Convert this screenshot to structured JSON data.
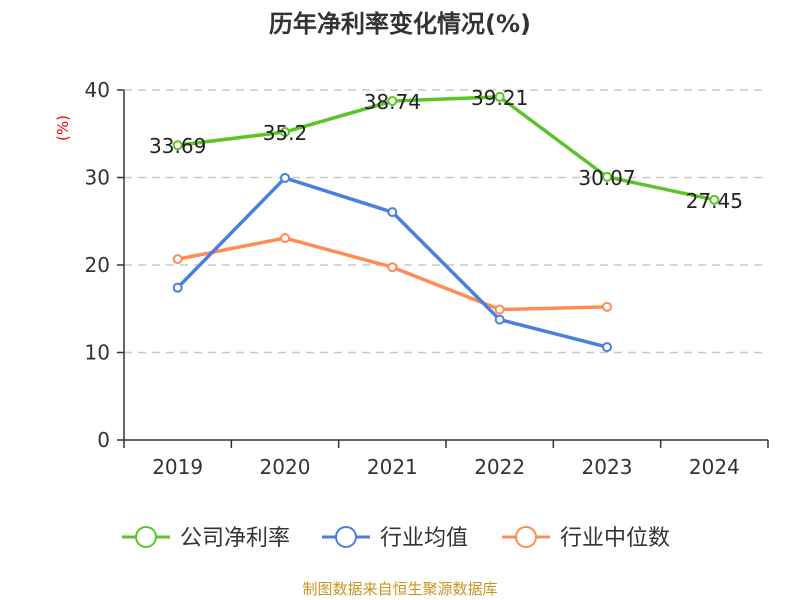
{
  "chart_data": {
    "type": "line",
    "title": "历年净利率变化情况(%)",
    "ylabel": "(%)",
    "categories": [
      "2019",
      "2020",
      "2021",
      "2022",
      "2023",
      "2024"
    ],
    "ylim": [
      0,
      40
    ],
    "yticks": [
      0,
      10,
      20,
      30,
      40
    ],
    "grid": true,
    "legend_position": "bottom",
    "series": [
      {
        "name": "公司净利率",
        "color": "#5cc424",
        "values": [
          33.69,
          35.2,
          38.74,
          39.21,
          30.07,
          27.45
        ],
        "labels": [
          "33.69",
          "35.2",
          "38.74",
          "39.21",
          "30.07",
          "27.45"
        ]
      },
      {
        "name": "行业均值",
        "color": "#4a7fe0",
        "values": [
          17.41,
          29.95,
          26.04,
          13.76,
          10.62,
          null
        ]
      },
      {
        "name": "行业中位数",
        "color": "#ff8c55",
        "values": [
          20.67,
          23.08,
          19.75,
          14.91,
          15.22,
          null
        ]
      }
    ]
  },
  "source": "制图数据来自恒生聚源数据库"
}
